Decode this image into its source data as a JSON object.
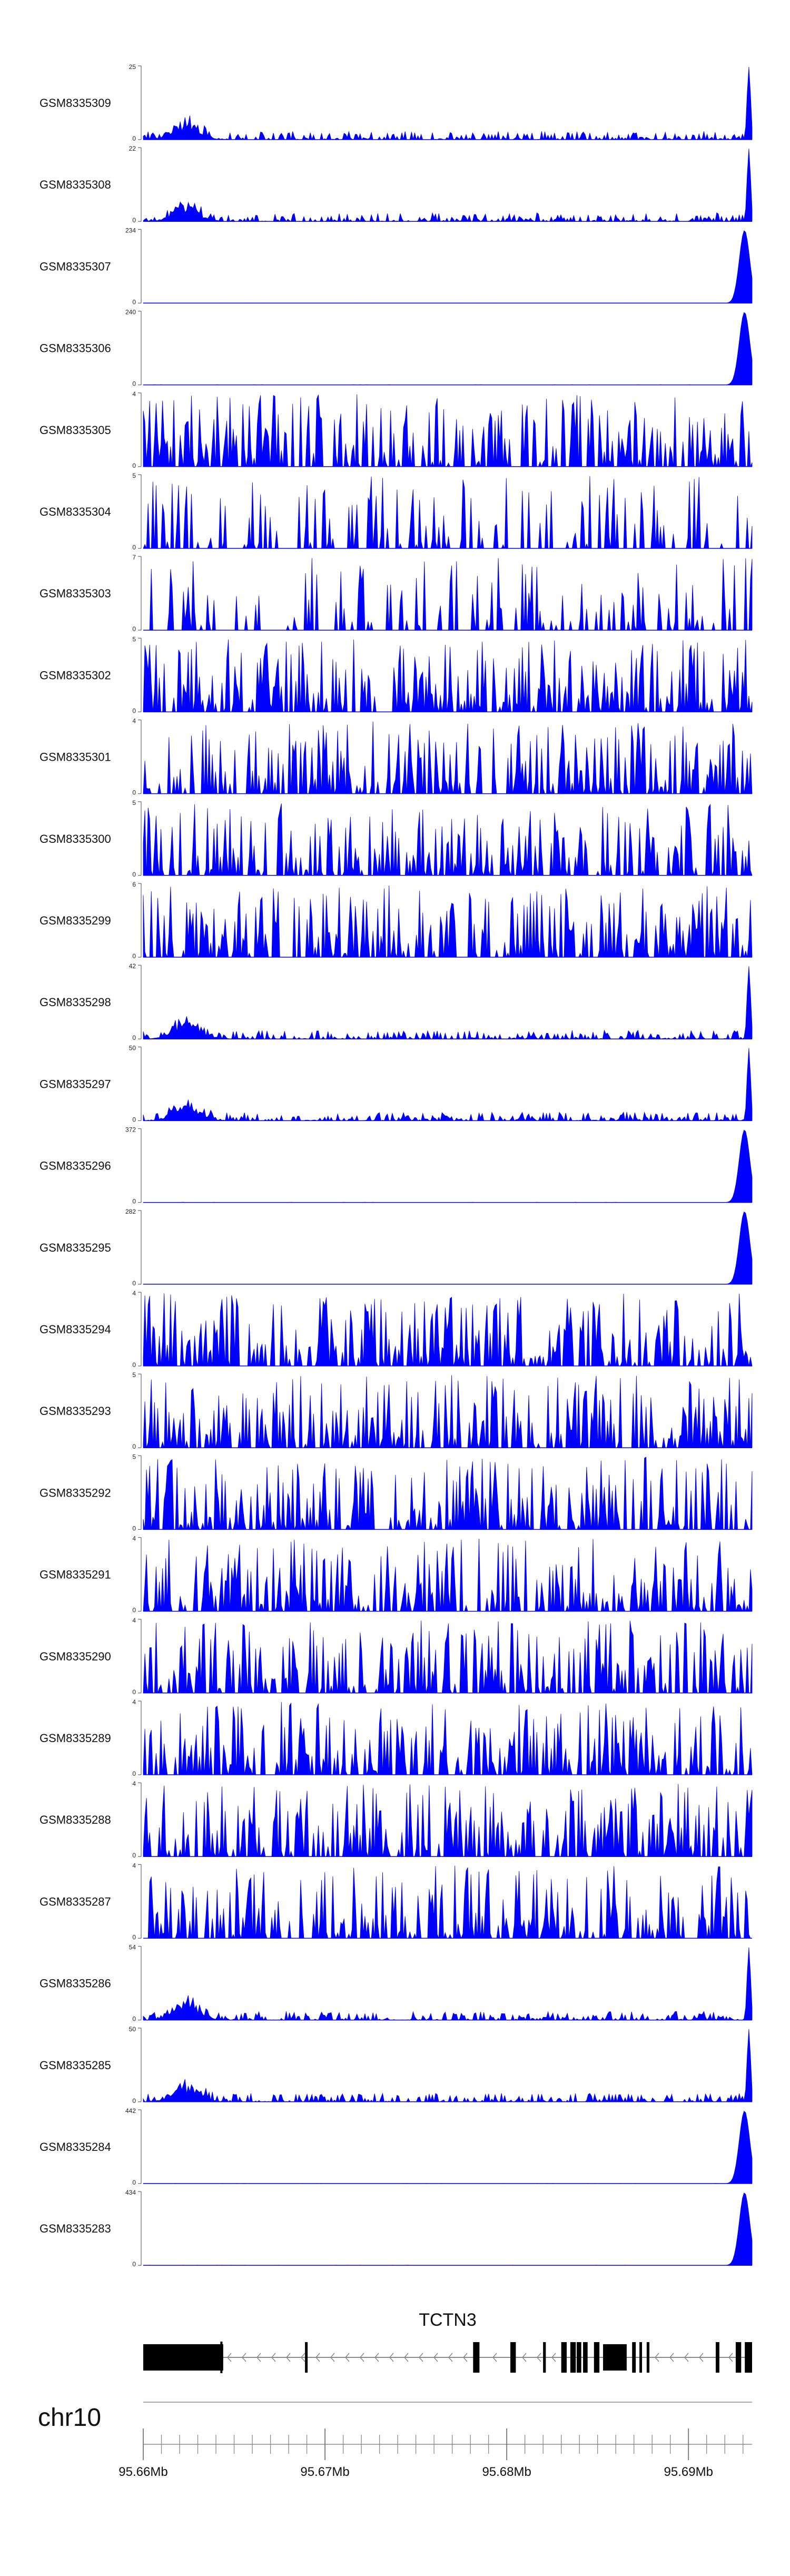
{
  "chart_data": {
    "type": "area",
    "chromosome": "chr10",
    "series_color": "#0000ff",
    "x_axis": {
      "range": [
        95.66,
        95.6935
      ],
      "ticks": [
        95.66,
        95.67,
        95.68,
        95.69
      ],
      "tick_labels": [
        "95.66Mb",
        "95.67Mb",
        "95.68Mb",
        "95.69Mb"
      ],
      "minor_tick_step": 0.001
    },
    "tracks": [
      {
        "name": "GSM8335309",
        "ymax": "25",
        "ymin": "0",
        "max": 25,
        "profile": "noisy_low"
      },
      {
        "name": "GSM8335308",
        "ymax": "22",
        "ymin": "0",
        "max": 22,
        "profile": "noisy_low"
      },
      {
        "name": "GSM8335307",
        "ymax": "234",
        "ymin": "0",
        "max": 234,
        "profile": "flat_peak"
      },
      {
        "name": "GSM8335306",
        "ymax": "240",
        "ymin": "0",
        "max": 240,
        "profile": "flat_peak"
      },
      {
        "name": "GSM8335305",
        "ymax": "4",
        "ymin": "0",
        "max": 4,
        "profile": "dense"
      },
      {
        "name": "GSM8335304",
        "ymax": "5",
        "ymin": "0",
        "max": 5,
        "profile": "sparse"
      },
      {
        "name": "GSM8335303",
        "ymax": "7",
        "ymin": "0",
        "max": 7,
        "profile": "sparse"
      },
      {
        "name": "GSM8335302",
        "ymax": "5",
        "ymin": "0",
        "max": 5,
        "profile": "dense"
      },
      {
        "name": "GSM8335301",
        "ymax": "4",
        "ymin": "0",
        "max": 4,
        "profile": "dense"
      },
      {
        "name": "GSM8335300",
        "ymax": "5",
        "ymin": "0",
        "max": 5,
        "profile": "dense"
      },
      {
        "name": "GSM8335299",
        "ymax": "6",
        "ymin": "0",
        "max": 6,
        "profile": "dense"
      },
      {
        "name": "GSM8335298",
        "ymax": "42",
        "ymin": "0",
        "max": 42,
        "profile": "noisy_low"
      },
      {
        "name": "GSM8335297",
        "ymax": "50",
        "ymin": "0",
        "max": 50,
        "profile": "noisy_low"
      },
      {
        "name": "GSM8335296",
        "ymax": "372",
        "ymin": "0",
        "max": 372,
        "profile": "flat_peak"
      },
      {
        "name": "GSM8335295",
        "ymax": "282",
        "ymin": "0",
        "max": 282,
        "profile": "flat_peak"
      },
      {
        "name": "GSM8335294",
        "ymax": "4",
        "ymin": "0",
        "max": 4,
        "profile": "dense"
      },
      {
        "name": "GSM8335293",
        "ymax": "5",
        "ymin": "0",
        "max": 5,
        "profile": "dense"
      },
      {
        "name": "GSM8335292",
        "ymax": "5",
        "ymin": "0",
        "max": 5,
        "profile": "dense"
      },
      {
        "name": "GSM8335291",
        "ymax": "4",
        "ymin": "0",
        "max": 4,
        "profile": "dense"
      },
      {
        "name": "GSM8335290",
        "ymax": "4",
        "ymin": "0",
        "max": 4,
        "profile": "dense"
      },
      {
        "name": "GSM8335289",
        "ymax": "4",
        "ymin": "0",
        "max": 4,
        "profile": "dense"
      },
      {
        "name": "GSM8335288",
        "ymax": "4",
        "ymin": "0",
        "max": 4,
        "profile": "dense"
      },
      {
        "name": "GSM8335287",
        "ymax": "4",
        "ymin": "0",
        "max": 4,
        "profile": "dense"
      },
      {
        "name": "GSM8335286",
        "ymax": "54",
        "ymin": "0",
        "max": 54,
        "profile": "noisy_low"
      },
      {
        "name": "GSM8335285",
        "ymax": "50",
        "ymin": "0",
        "max": 50,
        "profile": "noisy_low"
      },
      {
        "name": "GSM8335284",
        "ymax": "442",
        "ymin": "0",
        "max": 442,
        "profile": "flat_peak"
      },
      {
        "name": "GSM8335283",
        "ymax": "434",
        "ymin": "0",
        "max": 434,
        "profile": "flat_peak"
      }
    ],
    "gene": {
      "name": "TCTN3",
      "strand": "-",
      "start": 95.66,
      "end": 95.6935,
      "exons": [
        [
          95.66,
          95.6644
        ],
        [
          95.6689,
          95.669
        ],
        [
          95.67815,
          95.6785
        ],
        [
          95.6802,
          95.6805
        ],
        [
          95.682,
          95.68215
        ],
        [
          95.683,
          95.6833
        ],
        [
          95.6835,
          95.6838
        ],
        [
          95.68385,
          95.6841
        ],
        [
          95.6842,
          95.68445
        ],
        [
          95.6848,
          95.6851
        ],
        [
          95.6853,
          95.6866
        ],
        [
          95.6869,
          95.6871
        ],
        [
          95.6873,
          95.6874
        ],
        [
          95.6877,
          95.68785
        ],
        [
          95.6915,
          95.6917
        ],
        [
          95.6926,
          95.6929
        ],
        [
          95.6931,
          95.6935
        ]
      ]
    }
  }
}
